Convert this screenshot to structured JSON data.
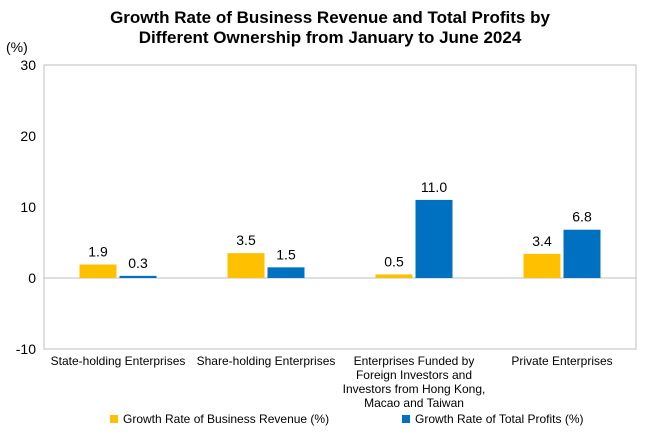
{
  "chart_data": {
    "type": "bar",
    "title_line1": "Growth Rate of Business Revenue and Total Profits by",
    "title_line2": "Different Ownership from January to June 2024",
    "ylabel": "(%)",
    "ylim": [
      -10,
      30
    ],
    "yticks": [
      -10,
      0,
      10,
      20,
      30
    ],
    "grid": false,
    "legend_position": "bottom",
    "categories": [
      [
        "State-holding Enterprises"
      ],
      [
        "Share-holding Enterprises"
      ],
      [
        "Enterprises Funded by",
        "Foreign Investors and",
        "Investors from Hong Kong,",
        "Macao and Taiwan"
      ],
      [
        "Private Enterprises"
      ]
    ],
    "series": [
      {
        "name": "Growth Rate of Business Revenue (%)",
        "color": "#FFC000",
        "values": [
          1.9,
          3.5,
          0.5,
          3.4
        ]
      },
      {
        "name": "Growth Rate of Total Profits (%)",
        "color": "#0070C0",
        "values": [
          0.3,
          1.5,
          11.0,
          6.8
        ]
      }
    ]
  }
}
